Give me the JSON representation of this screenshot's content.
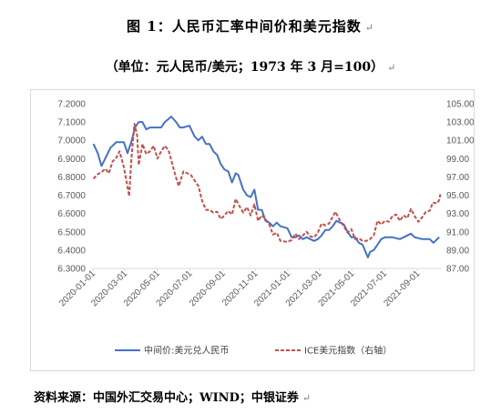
{
  "title": "图 1：人民币汇率中间价和美元指数",
  "subtitle": "（单位：元人民币/美元；1973 年 3 月=100）",
  "paragraph_mark": "↵",
  "source": "资料来源：中国外汇交易中心；WIND；中银证券",
  "colors": {
    "cny": "#4472c4",
    "dxy": "#c0504d",
    "axis": "#d9d9d9",
    "text": "#595959"
  },
  "chart_data": {
    "type": "line",
    "title": "图 1：人民币汇率中间价和美元指数",
    "y_left": {
      "lim": [
        6.3,
        7.2
      ],
      "ticks": [
        "7.2000",
        "7.1000",
        "7.0000",
        "6.9000",
        "6.8000",
        "6.7000",
        "6.6000",
        "6.5000",
        "6.4000",
        "6.3000"
      ]
    },
    "y_right": {
      "lim": [
        87,
        105
      ],
      "ticks": [
        "105.00",
        "103.00",
        "101.00",
        "99.00",
        "97.00",
        "95.00",
        "93.00",
        "91.00",
        "89.00",
        "87.00"
      ]
    },
    "x_ticks": [
      "2020-01-01",
      "2020-03-01",
      "2020-05-01",
      "2020-07-01",
      "2020-09-01",
      "2020-11-01",
      "2021-01-01",
      "2021-03-01",
      "2021-05-01",
      "2021-07-01",
      "2021-09-01"
    ],
    "x_range": [
      "2020-01-01",
      "2021-10-15"
    ],
    "series": [
      {
        "name": "中间价:美元兑人民币",
        "axis": "left",
        "style": "solid",
        "points": [
          [
            "2020-01-02",
            6.98
          ],
          [
            "2020-01-10",
            6.93
          ],
          [
            "2020-01-17",
            6.86
          ],
          [
            "2020-01-24",
            6.9
          ],
          [
            "2020-02-03",
            6.96
          ],
          [
            "2020-02-14",
            6.99
          ],
          [
            "2020-02-28",
            6.99
          ],
          [
            "2020-03-06",
            6.93
          ],
          [
            "2020-03-13",
            6.99
          ],
          [
            "2020-03-20",
            7.07
          ],
          [
            "2020-03-27",
            7.1
          ],
          [
            "2020-04-03",
            7.1
          ],
          [
            "2020-04-10",
            7.06
          ],
          [
            "2020-04-17",
            7.07
          ],
          [
            "2020-04-24",
            7.07
          ],
          [
            "2020-05-08",
            7.07
          ],
          [
            "2020-05-15",
            7.1
          ],
          [
            "2020-05-27",
            7.13
          ],
          [
            "2020-06-05",
            7.1
          ],
          [
            "2020-06-12",
            7.07
          ],
          [
            "2020-06-19",
            7.07
          ],
          [
            "2020-06-30",
            7.08
          ],
          [
            "2020-07-10",
            7.02
          ],
          [
            "2020-07-17",
            7.0
          ],
          [
            "2020-07-24",
            7.02
          ],
          [
            "2020-07-31",
            6.98
          ],
          [
            "2020-08-07",
            6.98
          ],
          [
            "2020-08-14",
            6.94
          ],
          [
            "2020-08-21",
            6.92
          ],
          [
            "2020-08-28",
            6.87
          ],
          [
            "2020-09-04",
            6.84
          ],
          [
            "2020-09-11",
            6.83
          ],
          [
            "2020-09-18",
            6.77
          ],
          [
            "2020-09-25",
            6.82
          ],
          [
            "2020-09-30",
            6.81
          ],
          [
            "2020-10-09",
            6.73
          ],
          [
            "2020-10-16",
            6.7
          ],
          [
            "2020-10-23",
            6.69
          ],
          [
            "2020-10-30",
            6.73
          ],
          [
            "2020-11-06",
            6.62
          ],
          [
            "2020-11-13",
            6.62
          ],
          [
            "2020-11-20",
            6.56
          ],
          [
            "2020-11-27",
            6.55
          ],
          [
            "2020-12-04",
            6.53
          ],
          [
            "2020-12-11",
            6.55
          ],
          [
            "2020-12-18",
            6.53
          ],
          [
            "2020-12-31",
            6.52
          ],
          [
            "2021-01-08",
            6.47
          ],
          [
            "2021-01-15",
            6.47
          ],
          [
            "2021-01-22",
            6.48
          ],
          [
            "2021-01-29",
            6.46
          ],
          [
            "2021-02-05",
            6.47
          ],
          [
            "2021-02-19",
            6.45
          ],
          [
            "2021-02-26",
            6.46
          ],
          [
            "2021-03-05",
            6.48
          ],
          [
            "2021-03-12",
            6.51
          ],
          [
            "2021-03-19",
            6.51
          ],
          [
            "2021-03-26",
            6.53
          ],
          [
            "2021-04-02",
            6.56
          ],
          [
            "2021-04-09",
            6.55
          ],
          [
            "2021-04-16",
            6.54
          ],
          [
            "2021-04-23",
            6.5
          ],
          [
            "2021-04-30",
            6.47
          ],
          [
            "2021-05-07",
            6.47
          ],
          [
            "2021-05-14",
            6.44
          ],
          [
            "2021-05-21",
            6.43
          ],
          [
            "2021-05-31",
            6.36
          ],
          [
            "2021-06-04",
            6.39
          ],
          [
            "2021-06-11",
            6.4
          ],
          [
            "2021-06-18",
            6.43
          ],
          [
            "2021-06-25",
            6.46
          ],
          [
            "2021-07-02",
            6.47
          ],
          [
            "2021-07-16",
            6.47
          ],
          [
            "2021-07-30",
            6.46
          ],
          [
            "2021-08-13",
            6.48
          ],
          [
            "2021-08-20",
            6.49
          ],
          [
            "2021-08-27",
            6.47
          ],
          [
            "2021-09-10",
            6.46
          ],
          [
            "2021-09-24",
            6.46
          ],
          [
            "2021-10-01",
            6.44
          ],
          [
            "2021-10-08",
            6.46
          ],
          [
            "2021-10-12",
            6.47
          ]
        ]
      },
      {
        "name": "ICE美元指数（右轴）",
        "axis": "right",
        "style": "dashed",
        "points": [
          [
            "2020-01-02",
            96.8
          ],
          [
            "2020-01-10",
            97.3
          ],
          [
            "2020-01-17",
            97.5
          ],
          [
            "2020-01-24",
            97.9
          ],
          [
            "2020-01-31",
            97.4
          ],
          [
            "2020-02-07",
            98.7
          ],
          [
            "2020-02-14",
            99.1
          ],
          [
            "2020-02-20",
            99.8
          ],
          [
            "2020-02-28",
            98.1
          ],
          [
            "2020-03-06",
            95.9
          ],
          [
            "2020-03-09",
            94.9
          ],
          [
            "2020-03-13",
            98.8
          ],
          [
            "2020-03-19",
            102.8
          ],
          [
            "2020-03-24",
            101.5
          ],
          [
            "2020-03-27",
            98.3
          ],
          [
            "2020-04-03",
            100.6
          ],
          [
            "2020-04-10",
            99.5
          ],
          [
            "2020-04-17",
            99.8
          ],
          [
            "2020-04-24",
            100.4
          ],
          [
            "2020-05-01",
            99.0
          ],
          [
            "2020-05-08",
            99.8
          ],
          [
            "2020-05-15",
            100.4
          ],
          [
            "2020-05-22",
            99.9
          ],
          [
            "2020-05-29",
            98.4
          ],
          [
            "2020-06-05",
            96.9
          ],
          [
            "2020-06-10",
            96.0
          ],
          [
            "2020-06-19",
            97.6
          ],
          [
            "2020-06-26",
            97.4
          ],
          [
            "2020-07-03",
            97.2
          ],
          [
            "2020-07-10",
            96.6
          ],
          [
            "2020-07-17",
            96.0
          ],
          [
            "2020-07-24",
            94.4
          ],
          [
            "2020-07-31",
            93.4
          ],
          [
            "2020-08-07",
            93.4
          ],
          [
            "2020-08-14",
            93.1
          ],
          [
            "2020-08-21",
            93.2
          ],
          [
            "2020-08-28",
            92.4
          ],
          [
            "2020-09-04",
            92.8
          ],
          [
            "2020-09-11",
            93.3
          ],
          [
            "2020-09-18",
            92.9
          ],
          [
            "2020-09-25",
            94.6
          ],
          [
            "2020-10-02",
            93.8
          ],
          [
            "2020-10-09",
            93.1
          ],
          [
            "2020-10-16",
            93.7
          ],
          [
            "2020-10-23",
            92.8
          ],
          [
            "2020-10-30",
            94.0
          ],
          [
            "2020-11-06",
            92.2
          ],
          [
            "2020-11-13",
            92.8
          ],
          [
            "2020-11-20",
            92.4
          ],
          [
            "2020-11-27",
            91.8
          ],
          [
            "2020-12-04",
            90.7
          ],
          [
            "2020-12-11",
            90.9
          ],
          [
            "2020-12-18",
            90.0
          ],
          [
            "2020-12-31",
            89.9
          ],
          [
            "2021-01-08",
            90.1
          ],
          [
            "2021-01-15",
            90.8
          ],
          [
            "2021-01-22",
            90.2
          ],
          [
            "2021-01-29",
            90.6
          ],
          [
            "2021-02-05",
            91.0
          ],
          [
            "2021-02-12",
            90.5
          ],
          [
            "2021-02-19",
            90.4
          ],
          [
            "2021-02-26",
            90.9
          ],
          [
            "2021-03-05",
            91.9
          ],
          [
            "2021-03-12",
            91.7
          ],
          [
            "2021-03-19",
            91.9
          ],
          [
            "2021-03-31",
            93.2
          ],
          [
            "2021-04-09",
            92.2
          ],
          [
            "2021-04-16",
            91.6
          ],
          [
            "2021-04-23",
            90.9
          ],
          [
            "2021-04-30",
            91.3
          ],
          [
            "2021-05-07",
            90.2
          ],
          [
            "2021-05-14",
            90.3
          ],
          [
            "2021-05-21",
            90.0
          ],
          [
            "2021-05-28",
            90.0
          ],
          [
            "2021-06-04",
            90.2
          ],
          [
            "2021-06-11",
            90.6
          ],
          [
            "2021-06-18",
            92.2
          ],
          [
            "2021-06-25",
            91.8
          ],
          [
            "2021-07-02",
            92.2
          ],
          [
            "2021-07-09",
            92.1
          ],
          [
            "2021-07-16",
            92.7
          ],
          [
            "2021-07-23",
            92.9
          ],
          [
            "2021-07-30",
            92.2
          ],
          [
            "2021-08-06",
            92.8
          ],
          [
            "2021-08-13",
            92.5
          ],
          [
            "2021-08-20",
            93.5
          ],
          [
            "2021-08-27",
            92.7
          ],
          [
            "2021-09-03",
            92.1
          ],
          [
            "2021-09-10",
            92.6
          ],
          [
            "2021-09-17",
            93.2
          ],
          [
            "2021-09-24",
            93.3
          ],
          [
            "2021-09-30",
            94.2
          ],
          [
            "2021-10-08",
            94.1
          ],
          [
            "2021-10-12",
            94.5
          ],
          [
            "2021-10-14",
            95.1
          ]
        ]
      }
    ],
    "legend": [
      "中间价:美元兑人民币",
      "ICE美元指数（右轴）"
    ],
    "legend_position": "bottom",
    "grid": false
  }
}
